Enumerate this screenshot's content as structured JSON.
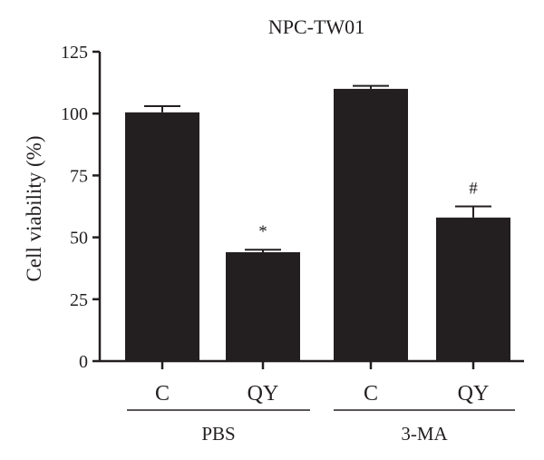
{
  "chart_data": {
    "type": "bar",
    "title": "NPC-TW01",
    "ylabel": "Cell viability (%)",
    "xlabel": "",
    "ylim": [
      0,
      125
    ],
    "yticks": [
      0,
      25,
      50,
      75,
      100,
      125
    ],
    "ytick_labels": [
      "0",
      "25",
      "50",
      "75",
      "100",
      "125"
    ],
    "categories": [
      "C",
      "QY",
      "C",
      "QY"
    ],
    "values": [
      100.5,
      44,
      110,
      58
    ],
    "errors": [
      2.5,
      1,
      1.2,
      4.5
    ],
    "annotations": [
      "",
      "*",
      "",
      "#"
    ],
    "groups": [
      {
        "label": "PBS",
        "members": [
          0,
          1
        ]
      },
      {
        "label": "3-MA",
        "members": [
          2,
          3
        ]
      }
    ],
    "bar_color": "#231f20",
    "grid": false,
    "legend": "none"
  }
}
